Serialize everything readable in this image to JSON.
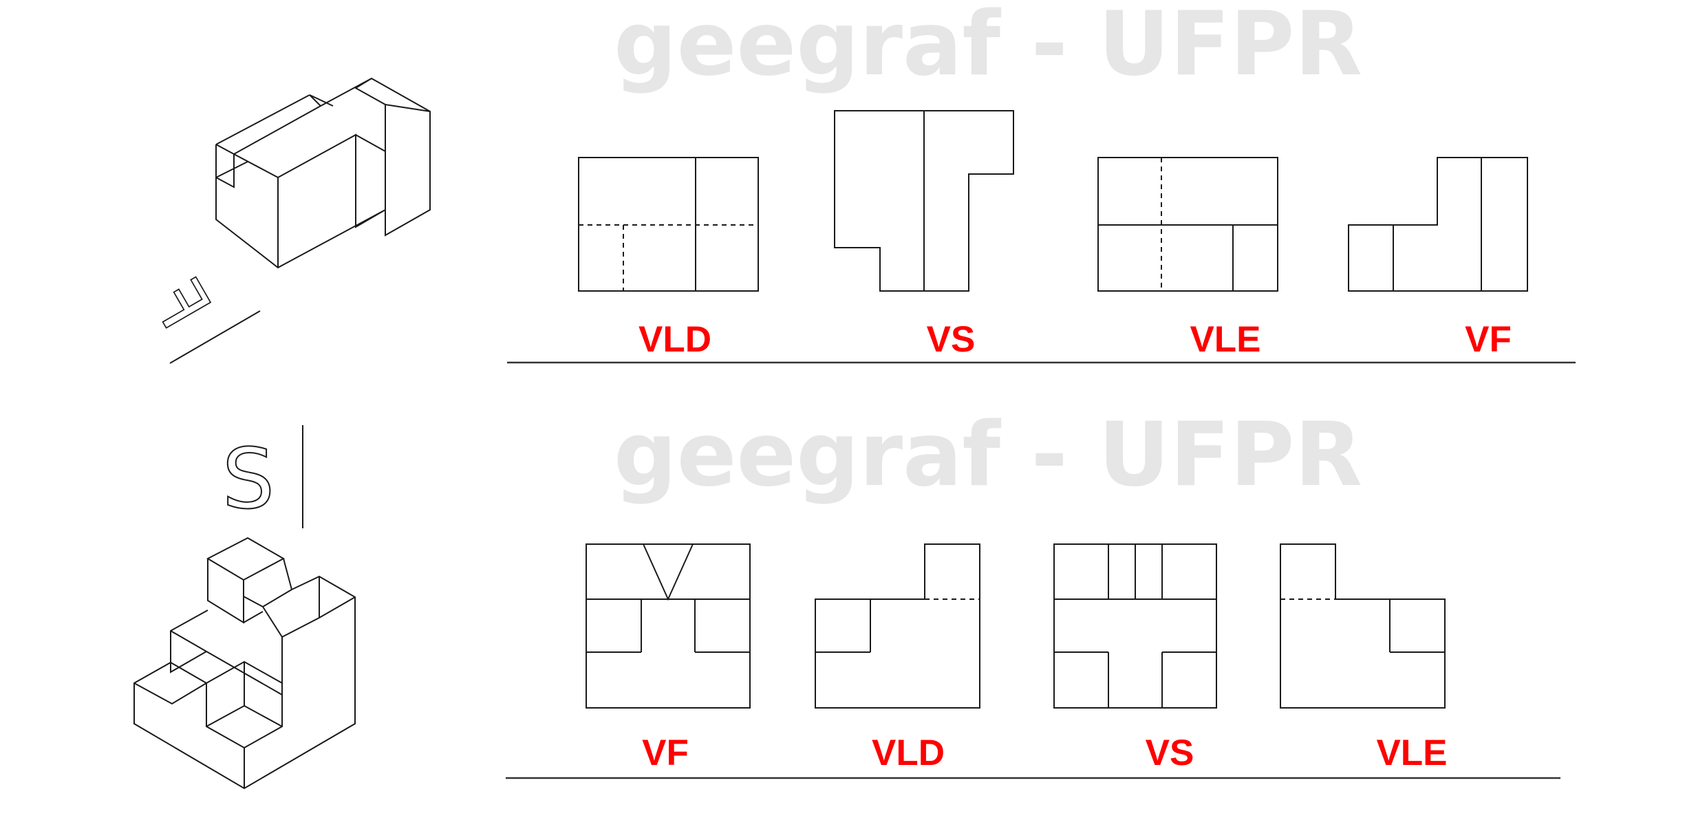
{
  "watermarks": [
    "geegraf - UFPR",
    "geegraf - UFPR"
  ],
  "exercise1": {
    "direction_letter": "F",
    "view_labels": [
      "VLD",
      "VS",
      "VLE",
      "VF"
    ]
  },
  "exercise2": {
    "direction_letter": "S",
    "view_labels": [
      "VF",
      "VLD",
      "VS",
      "VLE"
    ]
  },
  "colors": {
    "label": "#ff0000",
    "line": "#1a1a1a",
    "watermark": "#e6e6e6"
  }
}
